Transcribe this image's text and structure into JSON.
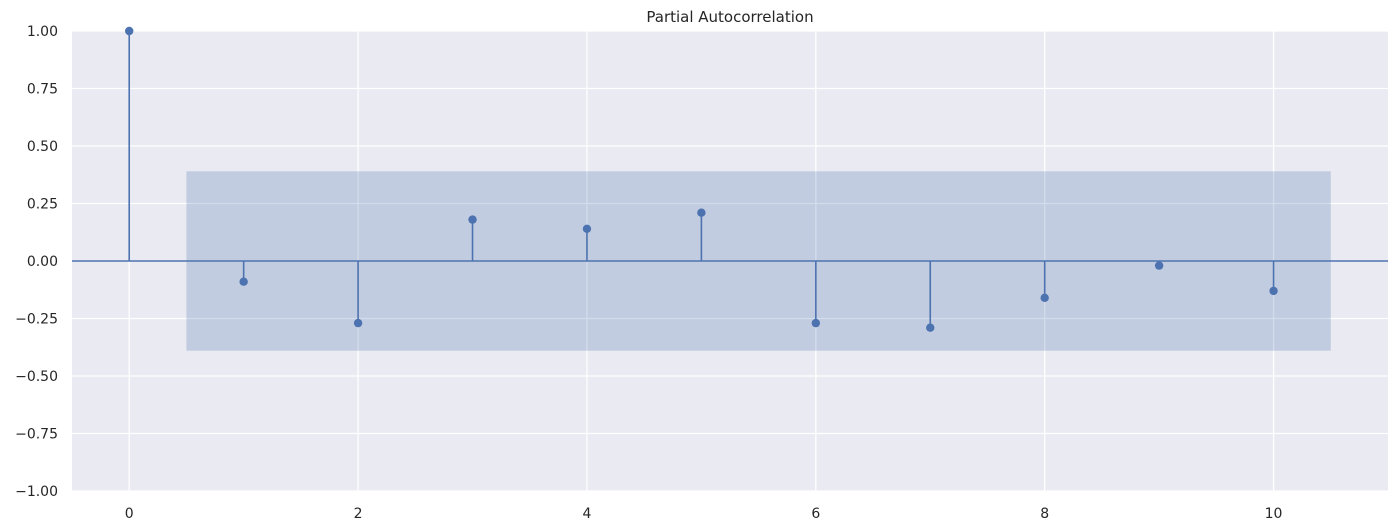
{
  "chart_data": {
    "type": "stem",
    "title": "Partial Autocorrelation",
    "xlabel": "",
    "ylabel": "",
    "xlim": [
      -0.5,
      11.0
    ],
    "ylim": [
      -1.0,
      1.0
    ],
    "x_ticks": [
      0,
      2,
      4,
      6,
      8,
      10
    ],
    "x_tick_labels": [
      "0",
      "2",
      "4",
      "6",
      "8",
      "10"
    ],
    "y_ticks": [
      -1.0,
      -0.75,
      -0.5,
      -0.25,
      0.0,
      0.25,
      0.5,
      0.75,
      1.0
    ],
    "y_tick_labels": [
      "−1.00",
      "−0.75",
      "−0.50",
      "−0.25",
      "0.00",
      "0.25",
      "0.50",
      "0.75",
      "1.00"
    ],
    "grid": true,
    "colors": {
      "background": "#eaeaf2",
      "grid": "#ffffff",
      "series": "#4c72b0",
      "confidence_band": "#4c72b0"
    },
    "confidence_band": {
      "x_start": 0.5,
      "x_end": 10.5,
      "lower": -0.39,
      "upper": 0.39
    },
    "lags": [
      0,
      1,
      2,
      3,
      4,
      5,
      6,
      7,
      8,
      9,
      10
    ],
    "values": [
      1.0,
      -0.09,
      -0.27,
      0.18,
      0.14,
      0.21,
      -0.27,
      -0.29,
      -0.16,
      -0.02,
      -0.13
    ]
  }
}
